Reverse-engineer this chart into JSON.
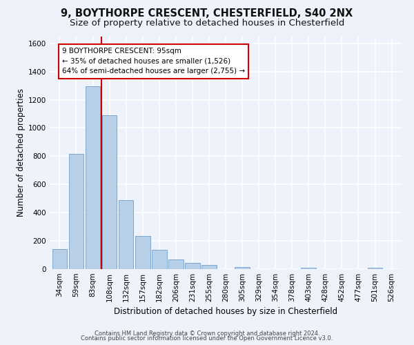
{
  "title_line1": "9, BOYTHORPE CRESCENT, CHESTERFIELD, S40 2NX",
  "title_line2": "Size of property relative to detached houses in Chesterfield",
  "xlabel": "Distribution of detached houses by size in Chesterfield",
  "ylabel": "Number of detached properties",
  "categories": [
    "34sqm",
    "59sqm",
    "83sqm",
    "108sqm",
    "132sqm",
    "157sqm",
    "182sqm",
    "206sqm",
    "231sqm",
    "255sqm",
    "280sqm",
    "305sqm",
    "329sqm",
    "354sqm",
    "378sqm",
    "403sqm",
    "428sqm",
    "452sqm",
    "477sqm",
    "501sqm",
    "526sqm"
  ],
  "values": [
    140,
    815,
    1295,
    1090,
    490,
    235,
    135,
    70,
    42,
    28,
    0,
    15,
    0,
    0,
    0,
    12,
    0,
    0,
    0,
    12,
    0
  ],
  "bar_color": "#b8cfe8",
  "bar_edge_color": "#6090c0",
  "annotation_text": "9 BOYTHORPE CRESCENT: 95sqm\n← 35% of detached houses are smaller (1,526)\n64% of semi-detached houses are larger (2,755) →",
  "annotation_box_color": "#ffffff",
  "annotation_box_edge": "#cc0000",
  "line_color": "#cc0000",
  "line_x_index": 2.5,
  "ylim": [
    0,
    1650
  ],
  "yticks": [
    0,
    200,
    400,
    600,
    800,
    1000,
    1200,
    1400,
    1600
  ],
  "footer_line1": "Contains HM Land Registry data © Crown copyright and database right 2024.",
  "footer_line2": "Contains public sector information licensed under the Open Government Licence v3.0.",
  "bg_color": "#eef2fb",
  "grid_color": "#ffffff",
  "title_fontsize": 10.5,
  "subtitle_fontsize": 9.5,
  "tick_fontsize": 7.5,
  "label_fontsize": 8.5,
  "footer_fontsize": 6.0
}
